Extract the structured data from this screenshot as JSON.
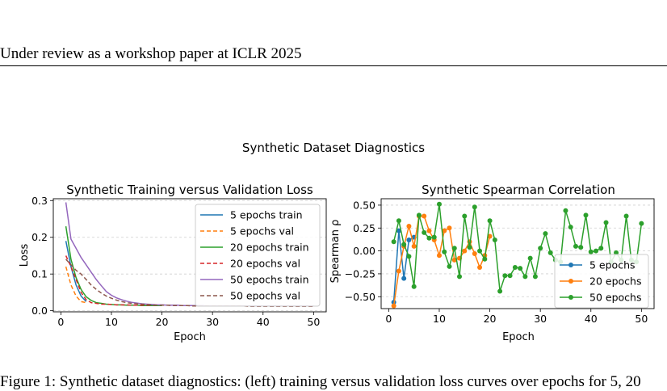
{
  "header": {
    "text": "Under review as a workshop paper at ICLR 2025"
  },
  "figure": {
    "suptitle": "Synthetic Dataset Diagnostics"
  },
  "caption": {
    "text": "Figure 1: Synthetic dataset diagnostics: (left) training versus validation loss curves over epochs for 5, 20"
  },
  "colors": {
    "blue": "#1f77b4",
    "orange": "#ff7f0e",
    "green": "#2ca02c",
    "red": "#d62728",
    "purple": "#9467bd",
    "brown": "#8c564b"
  },
  "chart_data": [
    {
      "type": "line",
      "title": "Synthetic Training versus Validation Loss",
      "xlabel": "Epoch",
      "ylabel": "Loss",
      "xlim": [
        -1.5,
        52.5
      ],
      "ylim": [
        -0.003,
        0.305
      ],
      "xticks": [
        0,
        10,
        20,
        30,
        40,
        50
      ],
      "yticks": [
        0.0,
        0.1,
        0.2,
        0.3
      ],
      "ytick_labels": [
        "0.0",
        "0.1",
        "0.2",
        "0.3"
      ],
      "grid": "y",
      "legend": "upper-right",
      "series": [
        {
          "name": "5 epochs train",
          "color": "#1f77b4",
          "dash": "solid",
          "x": [
            1,
            2,
            3,
            4,
            5
          ],
          "y": [
            0.19,
            0.12,
            0.07,
            0.04,
            0.025
          ]
        },
        {
          "name": "5 epochs val",
          "color": "#ff7f0e",
          "dash": "dashed",
          "x": [
            1,
            2,
            3,
            4,
            5
          ],
          "y": [
            0.12,
            0.07,
            0.04,
            0.025,
            0.022
          ]
        },
        {
          "name": "20 epochs train",
          "color": "#2ca02c",
          "dash": "solid",
          "x": [
            1,
            2,
            3,
            4,
            5,
            6,
            7,
            8,
            9,
            10,
            11,
            12,
            13,
            14,
            15,
            16,
            17,
            18,
            19,
            20
          ],
          "y": [
            0.23,
            0.14,
            0.09,
            0.058,
            0.038,
            0.028,
            0.022,
            0.02,
            0.018,
            0.017,
            0.016,
            0.016,
            0.015,
            0.015,
            0.015,
            0.014,
            0.014,
            0.014,
            0.014,
            0.014
          ]
        },
        {
          "name": "20 epochs val",
          "color": "#d62728",
          "dash": "dashed",
          "x": [
            1,
            2,
            3,
            4,
            5,
            6,
            7,
            8,
            9,
            10,
            11,
            12,
            13,
            14,
            15,
            16,
            17,
            18,
            19,
            20
          ],
          "y": [
            0.15,
            0.12,
            0.085,
            0.05,
            0.03,
            0.022,
            0.02,
            0.018,
            0.018,
            0.017,
            0.016,
            0.016,
            0.016,
            0.015,
            0.015,
            0.015,
            0.015,
            0.015,
            0.015,
            0.015
          ]
        },
        {
          "name": "50 epochs train",
          "color": "#9467bd",
          "dash": "solid",
          "x": [
            1,
            2,
            3,
            4,
            5,
            6,
            7,
            8,
            9,
            10,
            11,
            12,
            13,
            14,
            15,
            16,
            17,
            18,
            19,
            20,
            21,
            22,
            23,
            24,
            25,
            26,
            27,
            28,
            29,
            30,
            31,
            32,
            33,
            34,
            35,
            36,
            37,
            38,
            39,
            40,
            41,
            42,
            43,
            44,
            45,
            46,
            47,
            48,
            49,
            50
          ],
          "y": [
            0.295,
            0.195,
            0.17,
            0.145,
            0.125,
            0.105,
            0.085,
            0.068,
            0.052,
            0.042,
            0.035,
            0.03,
            0.026,
            0.023,
            0.021,
            0.019,
            0.018,
            0.017,
            0.016,
            0.016,
            0.015,
            0.015,
            0.015,
            0.014,
            0.014,
            0.014,
            0.014,
            0.014,
            0.013,
            0.013,
            0.013,
            0.013,
            0.013,
            0.013,
            0.013,
            0.013,
            0.013,
            0.013,
            0.013,
            0.013,
            0.013,
            0.013,
            0.013,
            0.013,
            0.013,
            0.013,
            0.013,
            0.013,
            0.013,
            0.013
          ]
        },
        {
          "name": "50 epochs val",
          "color": "#8c564b",
          "dash": "dashed",
          "x": [
            1,
            2,
            3,
            4,
            5,
            6,
            7,
            8,
            9,
            10,
            11,
            12,
            13,
            14,
            15,
            16,
            17,
            18,
            19,
            20,
            21,
            22,
            23,
            24,
            25,
            26,
            27,
            28,
            29,
            30,
            31,
            32,
            33,
            34,
            35,
            36,
            37,
            38,
            39,
            40,
            41,
            42,
            43,
            44,
            45,
            46,
            47,
            48,
            49,
            50
          ],
          "y": [
            0.14,
            0.125,
            0.11,
            0.1,
            0.085,
            0.07,
            0.058,
            0.048,
            0.04,
            0.034,
            0.029,
            0.025,
            0.022,
            0.02,
            0.019,
            0.018,
            0.017,
            0.016,
            0.015,
            0.015,
            0.015,
            0.014,
            0.014,
            0.014,
            0.014,
            0.013,
            0.013,
            0.013,
            0.013,
            0.013,
            0.013,
            0.013,
            0.013,
            0.013,
            0.013,
            0.013,
            0.012,
            0.012,
            0.012,
            0.012,
            0.012,
            0.012,
            0.012,
            0.012,
            0.012,
            0.012,
            0.012,
            0.012,
            0.012,
            0.012
          ]
        }
      ]
    },
    {
      "type": "line",
      "title": "Synthetic Spearman Correlation",
      "xlabel": "Epoch",
      "ylabel": "Spearman ρ",
      "xlim": [
        -1.5,
        52.5
      ],
      "ylim": [
        -0.63,
        0.57
      ],
      "xticks": [
        0,
        10,
        20,
        30,
        40,
        50
      ],
      "yticks": [
        0.5,
        0.25,
        0.0,
        -0.25,
        -0.5
      ],
      "ytick_labels": [
        "0.50",
        "0.25",
        "0.00",
        "−0.25",
        "−0.50"
      ],
      "grid": "y",
      "legend": "lower-right",
      "series": [
        {
          "name": "5 epochs",
          "color": "#1f77b4",
          "marker": "circle",
          "x": [
            1,
            2,
            3,
            4,
            5
          ],
          "y": [
            -0.56,
            0.22,
            -0.3,
            0.12,
            0.15
          ]
        },
        {
          "name": "20 epochs",
          "color": "#ff7f0e",
          "marker": "circle",
          "x": [
            1,
            2,
            3,
            4,
            5,
            6,
            7,
            8,
            9,
            10,
            11,
            12,
            13,
            14,
            15,
            16,
            17,
            18,
            19,
            20
          ],
          "y": [
            -0.6,
            -0.22,
            0.05,
            0.27,
            0.05,
            0.38,
            0.38,
            0.22,
            0.12,
            -0.05,
            0.22,
            0.25,
            -0.1,
            -0.08,
            0.0,
            0.1,
            -0.03,
            -0.18,
            -0.05,
            0.16
          ]
        },
        {
          "name": "50 epochs",
          "color": "#2ca02c",
          "marker": "circle",
          "x": [
            1,
            2,
            3,
            4,
            5,
            6,
            7,
            8,
            9,
            10,
            11,
            12,
            13,
            14,
            15,
            16,
            17,
            18,
            19,
            20,
            21,
            22,
            23,
            24,
            25,
            26,
            27,
            28,
            29,
            30,
            31,
            32,
            33,
            34,
            35,
            36,
            37,
            38,
            39,
            40,
            41,
            42,
            43,
            44,
            45,
            46,
            47,
            48,
            49,
            50
          ],
          "y": [
            0.1,
            0.33,
            0.07,
            -0.06,
            -0.39,
            0.39,
            0.2,
            0.14,
            0.15,
            0.51,
            -0.01,
            -0.17,
            0.03,
            -0.28,
            0.38,
            0.04,
            0.48,
            0.0,
            -0.09,
            0.33,
            0.12,
            -0.44,
            -0.27,
            -0.27,
            -0.18,
            -0.19,
            -0.28,
            -0.08,
            -0.28,
            0.03,
            0.19,
            -0.02,
            -0.1,
            -0.12,
            0.44,
            0.26,
            0.05,
            0.04,
            0.39,
            -0.01,
            0.0,
            0.03,
            0.31,
            -0.12,
            -0.02,
            -0.1,
            0.38,
            -0.1,
            -0.12,
            0.3
          ]
        }
      ]
    }
  ]
}
